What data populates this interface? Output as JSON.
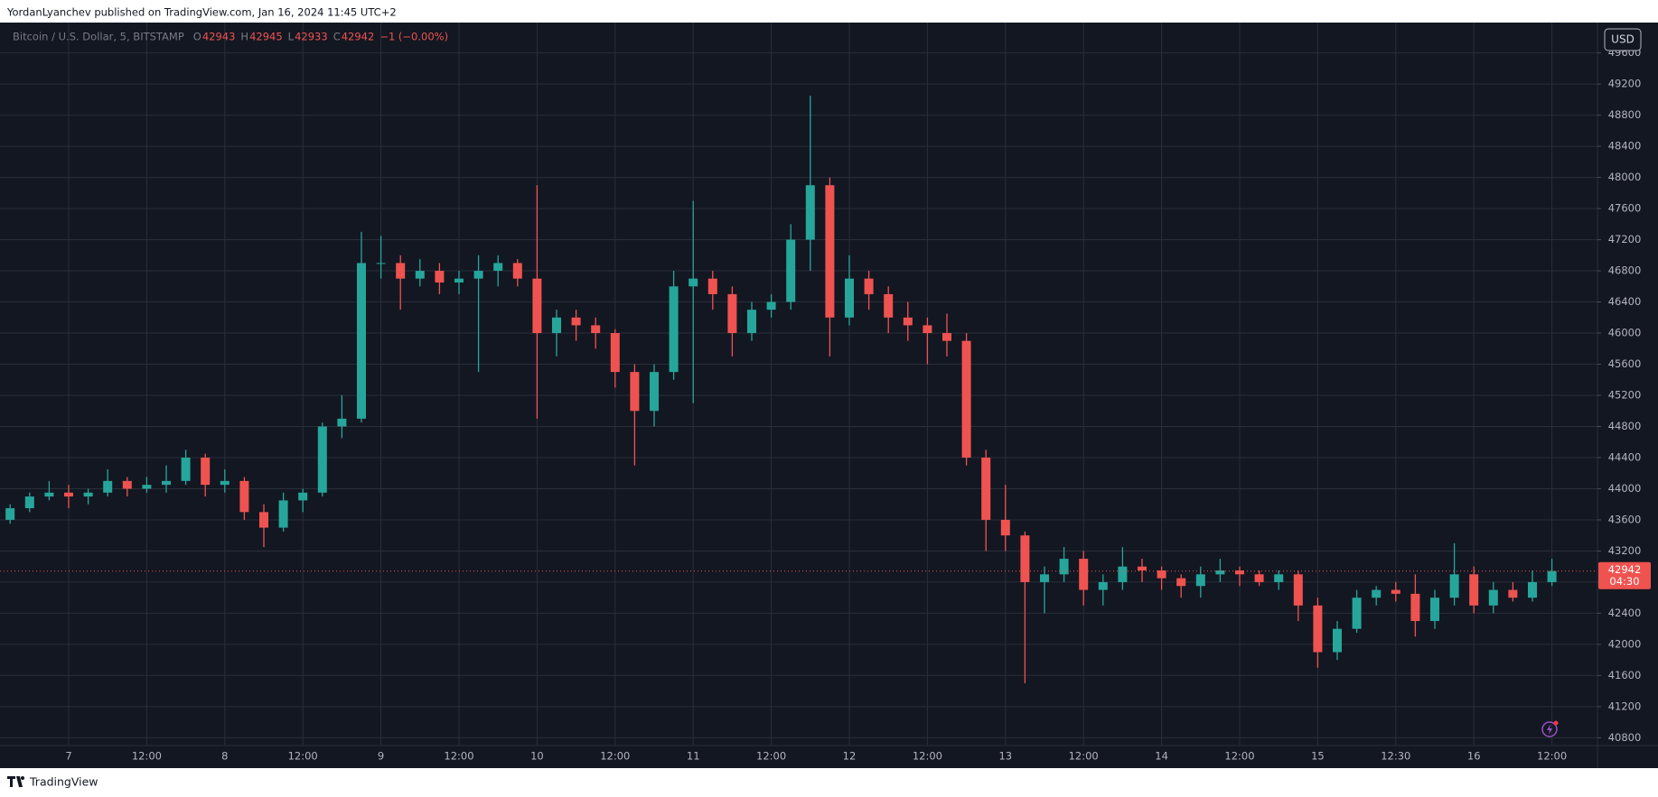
{
  "header": {
    "byline": "YordanLyanchev published on TradingView.com, Jan 16, 2024 11:45 UTC+2"
  },
  "legend": {
    "symbol": "Bitcoin / U.S. Dollar, 5, BITSTAMP",
    "ohlc": [
      {
        "label": "O",
        "value": 42943
      },
      {
        "label": "H",
        "value": 42945
      },
      {
        "label": "L",
        "value": 42933
      },
      {
        "label": "C",
        "value": 42942
      }
    ],
    "change": "−1 (−0.00%)"
  },
  "currency_button": "USD",
  "countdown": "04:30",
  "footer": {
    "brand": "TradingView"
  },
  "chart_data": {
    "type": "candlestick",
    "categories": [
      null,
      null,
      null,
      "7",
      null,
      null,
      null,
      "12:00",
      null,
      null,
      null,
      "8",
      null,
      null,
      null,
      "12:00",
      null,
      null,
      null,
      "9",
      null,
      null,
      null,
      "12:00",
      null,
      null,
      null,
      "10",
      null,
      null,
      null,
      "12:00",
      null,
      null,
      null,
      "11",
      null,
      null,
      null,
      "12:00",
      null,
      null,
      null,
      "12",
      null,
      null,
      null,
      "12:00",
      null,
      null,
      null,
      "13",
      null,
      null,
      null,
      "12:00",
      null,
      null,
      null,
      "14",
      null,
      null,
      null,
      "12:00",
      null,
      null,
      null,
      "15",
      null,
      null,
      null,
      "12:30",
      null,
      null,
      null,
      "16",
      null,
      null,
      null,
      "12:00"
    ],
    "open": [
      43600,
      43750,
      43900,
      43950,
      43900,
      43950,
      44100,
      44000,
      44050,
      44100,
      44400,
      44050,
      44100,
      43700,
      43500,
      43850,
      43950,
      44800,
      44900,
      46900,
      46900,
      46700,
      46800,
      46650,
      46700,
      46800,
      46900,
      46700,
      46000,
      46200,
      46100,
      46000,
      45500,
      45000,
      45500,
      46600,
      46700,
      46500,
      46000,
      46300,
      46400,
      47200,
      47900,
      46200,
      46700,
      46500,
      46200,
      46100,
      46000,
      45900,
      44400,
      43600,
      43400,
      42800,
      42900,
      43100,
      42700,
      42800,
      43000,
      42950,
      42850,
      42750,
      42900,
      42950,
      42900,
      42800,
      42900,
      42500,
      41900,
      42200,
      42600,
      42700,
      42650,
      42300,
      42600,
      42900,
      42500,
      42700,
      42600,
      42800
    ],
    "high": [
      43800,
      43950,
      44100,
      44050,
      44000,
      44250,
      44150,
      44150,
      44300,
      44500,
      44450,
      44250,
      44150,
      43800,
      43950,
      44000,
      44850,
      45200,
      47300,
      47250,
      47000,
      46950,
      46900,
      46800,
      47000,
      47000,
      46950,
      47900,
      46300,
      46300,
      46200,
      46050,
      45600,
      45600,
      46800,
      47700,
      46800,
      46600,
      46400,
      46500,
      47400,
      49050,
      48000,
      47000,
      46800,
      46600,
      46400,
      46200,
      46250,
      46000,
      44500,
      44050,
      43450,
      43000,
      43250,
      43200,
      42900,
      43250,
      43100,
      43000,
      42900,
      43000,
      43100,
      43000,
      42950,
      42950,
      42950,
      42600,
      42300,
      42700,
      42750,
      42800,
      42900,
      42700,
      43300,
      43000,
      42800,
      42800,
      42950,
      43100
    ],
    "low": [
      43550,
      43700,
      43850,
      43750,
      43800,
      43900,
      43900,
      43950,
      43950,
      44050,
      43900,
      43950,
      43600,
      43250,
      43450,
      43700,
      43900,
      44650,
      44850,
      46700,
      46300,
      46600,
      46500,
      46500,
      45500,
      46600,
      46600,
      44900,
      45700,
      45900,
      45800,
      45300,
      44300,
      44800,
      45400,
      45100,
      46300,
      45700,
      45900,
      46200,
      46300,
      46800,
      45700,
      46100,
      46300,
      46000,
      45900,
      45600,
      45700,
      44300,
      43200,
      43200,
      41500,
      42400,
      42800,
      42500,
      42500,
      42700,
      42800,
      42700,
      42600,
      42600,
      42800,
      42750,
      42750,
      42700,
      42300,
      41700,
      41800,
      42150,
      42500,
      42550,
      42100,
      42200,
      42500,
      42400,
      42400,
      42550,
      42550,
      42750
    ],
    "close": [
      43750,
      43900,
      43950,
      43900,
      43950,
      44100,
      44000,
      44050,
      44100,
      44400,
      44050,
      44100,
      43700,
      43500,
      43850,
      43950,
      44800,
      44900,
      46900,
      46900,
      46700,
      46800,
      46650,
      46700,
      46800,
      46900,
      46700,
      46000,
      46200,
      46100,
      46000,
      45500,
      45000,
      45500,
      46600,
      46700,
      46500,
      46000,
      46300,
      46400,
      47200,
      47900,
      46200,
      46700,
      46500,
      46200,
      46100,
      46000,
      45900,
      44400,
      43600,
      43400,
      42800,
      42900,
      43100,
      42700,
      42800,
      43000,
      42950,
      42850,
      42750,
      42900,
      42950,
      42900,
      42800,
      42900,
      42500,
      41900,
      42200,
      42600,
      42700,
      42650,
      42300,
      42600,
      42900,
      42500,
      42700,
      42600,
      42800,
      42942
    ],
    "up_color": "#26a69a",
    "down_color": "#ef5350",
    "last_price": 42942,
    "ylim": [
      40700,
      49990
    ],
    "yticks": [
      40800,
      41200,
      41600,
      42000,
      42400,
      42800,
      43200,
      43600,
      44000,
      44400,
      44800,
      45200,
      45600,
      46000,
      46400,
      46800,
      47200,
      47600,
      48000,
      48400,
      48800,
      49200,
      49600
    ],
    "grid": true
  }
}
